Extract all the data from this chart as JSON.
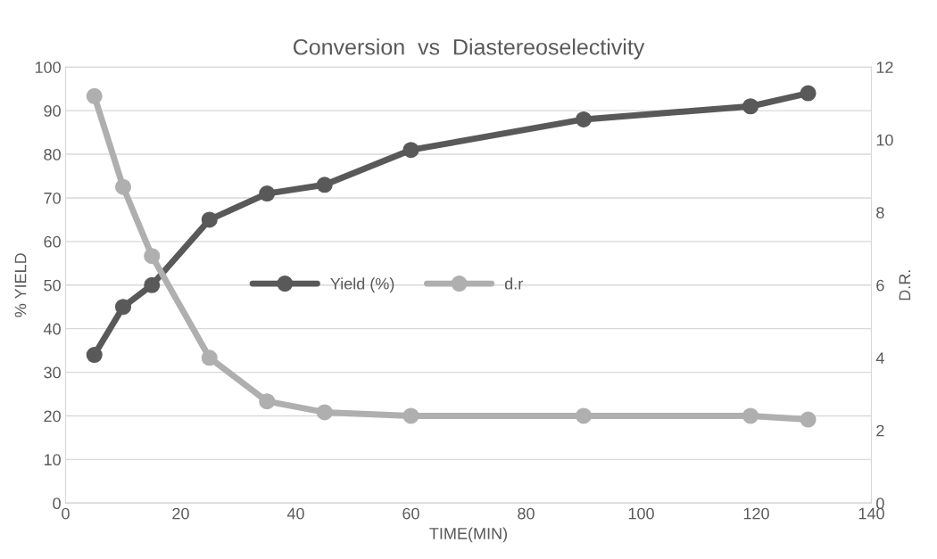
{
  "chart_data": {
    "type": "line",
    "title": "Conversion  vs  Diastereoselectivity",
    "xlabel": "TIME(MIN)",
    "ylabel": "% YIELD",
    "y2label": "D.R.",
    "x": [
      5,
      10,
      15,
      25,
      35,
      45,
      60,
      90,
      119,
      129
    ],
    "series": [
      {
        "name": "Yield (%)",
        "color": "#595959",
        "values": [
          34,
          45,
          50,
          65,
          71,
          73,
          81,
          88,
          91,
          94
        ]
      },
      {
        "name": "d.r",
        "color": "#afafaf",
        "axis": "y2",
        "values": [
          11.2,
          8.7,
          6.8,
          4.0,
          2.8,
          2.5,
          2.4,
          2.4,
          2.4,
          2.3
        ]
      }
    ],
    "xlim": [
      0,
      140
    ],
    "xticks": [
      0,
      20,
      40,
      60,
      80,
      100,
      120,
      140
    ],
    "ylim": [
      0,
      100
    ],
    "yticks": [
      0,
      10,
      20,
      30,
      40,
      50,
      60,
      70,
      80,
      90,
      100
    ],
    "y2lim": [
      0,
      12
    ],
    "y2ticks": [
      0,
      2,
      4,
      6,
      8,
      10,
      12
    ],
    "grid": "y",
    "legend": "center",
    "marker": "circle",
    "line_style": "solid"
  }
}
